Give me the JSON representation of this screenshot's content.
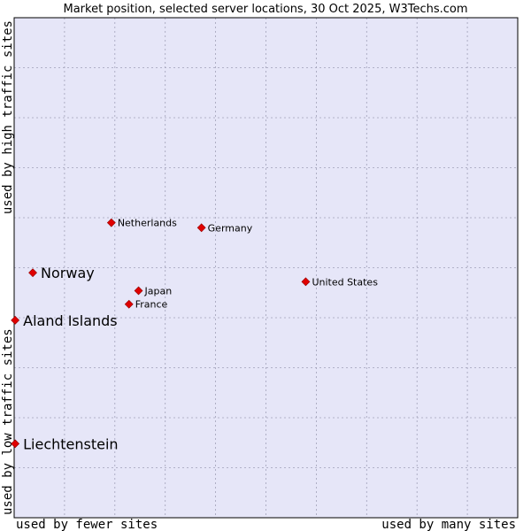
{
  "chart_data": {
    "type": "scatter",
    "title": "Market position, selected server locations, 30 Oct 2025, W3Techs.com",
    "xlabel_low": "used by fewer sites",
    "xlabel_high": "used by many sites",
    "ylabel_low": "used by low traffic sites",
    "ylabel_high": "used by high traffic sites",
    "xlim": [
      0,
      10
    ],
    "ylim": [
      0,
      10
    ],
    "grid": true,
    "points": [
      {
        "name": "Netherlands",
        "x": 1.93,
        "y": 5.9,
        "highlight": false
      },
      {
        "name": "Germany",
        "x": 3.72,
        "y": 5.8,
        "highlight": false
      },
      {
        "name": "Norway",
        "x": 0.37,
        "y": 4.9,
        "highlight": true
      },
      {
        "name": "United States",
        "x": 5.79,
        "y": 4.72,
        "highlight": false
      },
      {
        "name": "Japan",
        "x": 2.47,
        "y": 4.54,
        "highlight": false
      },
      {
        "name": "France",
        "x": 2.28,
        "y": 4.27,
        "highlight": false
      },
      {
        "name": "Aland Islands",
        "x": 0.02,
        "y": 3.95,
        "highlight": true
      },
      {
        "name": "Liechtenstein",
        "x": 0.02,
        "y": 1.48,
        "highlight": true
      }
    ]
  },
  "colors": {
    "plot_bg": "#e6e6f8",
    "grid": "#a0a0b8",
    "marker": "#e00000",
    "marker_edge": "#900000",
    "axis": "#000000"
  }
}
